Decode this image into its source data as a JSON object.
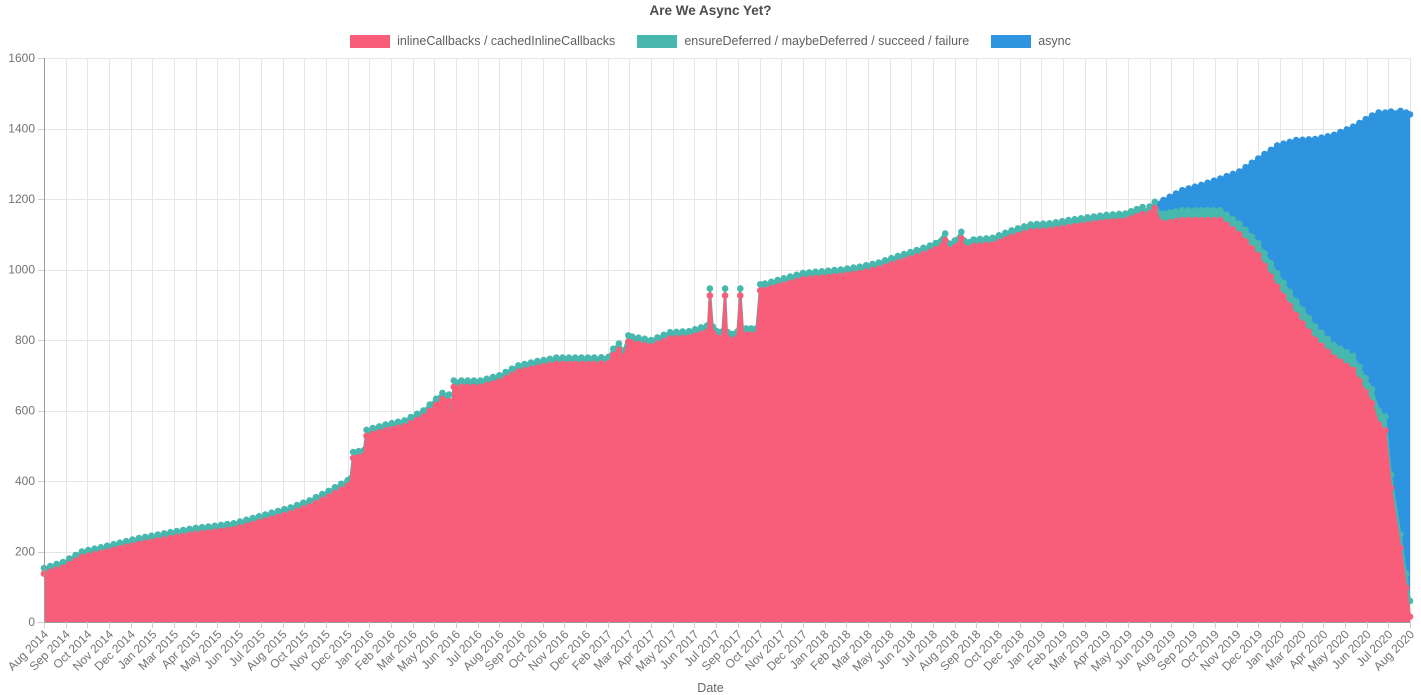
{
  "title": "Are We Async Yet?",
  "legend": [
    {
      "label": "inlineCallbacks / cachedInlineCallbacks",
      "color": "#f85e79"
    },
    {
      "label": "ensureDeferred / maybeDeferred / succeed / failure",
      "color": "#48b8ae"
    },
    {
      "label": "async",
      "color": "#2f94e0"
    }
  ],
  "chart_data": {
    "type": "area",
    "stacked": true,
    "title": "Are We Async Yet?",
    "xlabel": "Date",
    "ylabel": "",
    "ylim": [
      0,
      1600
    ],
    "y_ticks": [
      0,
      200,
      400,
      600,
      800,
      1000,
      1200,
      1400,
      1600
    ],
    "grid": true,
    "legend_position": "top",
    "x_range": {
      "start": "Aug 2014",
      "end": "Aug 2020",
      "step": "1 month",
      "month_index_max": 72
    },
    "x_tick_labels": [
      "Aug 2014",
      "Sep 2014",
      "Oct 2014",
      "Nov 2014",
      "Dec 2014",
      "Jan 2015",
      "Mar 2015",
      "Apr 2015",
      "May 2015",
      "Jun 2015",
      "Jul 2015",
      "Aug 2015",
      "Oct 2015",
      "Nov 2015",
      "Dec 2015",
      "Jan 2016",
      "Feb 2016",
      "Mar 2016",
      "May 2016",
      "Jun 2016",
      "Jul 2016",
      "Aug 2016",
      "Sep 2016",
      "Oct 2016",
      "Nov 2016",
      "Dec 2016",
      "Feb 2017",
      "Mar 2017",
      "Apr 2017",
      "May 2017",
      "Jun 2017",
      "Jul 2017",
      "Sep 2017",
      "Oct 2017",
      "Nov 2017",
      "Dec 2017",
      "Jan 2018",
      "Feb 2018",
      "Mar 2018",
      "May 2018",
      "Jun 2018",
      "Jul 2018",
      "Aug 2018",
      "Sep 2018",
      "Oct 2018",
      "Dec 2018",
      "Jan 2019",
      "Feb 2019",
      "Mar 2019",
      "Apr 2019",
      "May 2019",
      "Jun 2019",
      "Aug 2019",
      "Sep 2019",
      "Oct 2019",
      "Nov 2019",
      "Dec 2019",
      "Jan 2020",
      "Mar 2020",
      "Apr 2020",
      "May 2020",
      "Jun 2020",
      "Jul 2020",
      "Aug 2020"
    ],
    "series": [
      {
        "name": "inlineCallbacks / cachedInlineCallbacks",
        "color": "#f85e79",
        "values": [
          137,
          154,
          184,
          196,
          209,
          221,
          231,
          241,
          250,
          256,
          263,
          278,
          293,
          308,
          328,
          355,
          385,
          528,
          543,
          555,
          582,
          632,
          667,
          667,
          682,
          710,
          722,
          732,
          732,
          732,
          757,
          792,
          782,
          804,
          807,
          823,
          804,
          815,
          942,
          957,
          972,
          977,
          982,
          990,
          1002,
          1020,
          1037,
          1057,
          1063,
          1066,
          1071,
          1092,
          1108,
          1111,
          1120,
          1128,
          1135,
          1139,
          1145,
          1131,
          1140,
          1140,
          1140,
          1100,
          1040,
          950,
          870,
          800,
          750,
          715,
          620,
          380,
          15
        ]
      },
      {
        "name": "ensureDeferred / maybeDeferred / succeed / failure",
        "color": "#48b8ae",
        "values": [
          16,
          16,
          16,
          16,
          16,
          17,
          17,
          17,
          17,
          17,
          17,
          17,
          17,
          17,
          17,
          17,
          17,
          17,
          17,
          17,
          18,
          18,
          18,
          18,
          18,
          18,
          18,
          18,
          18,
          18,
          18,
          18,
          18,
          18,
          18,
          18,
          18,
          18,
          18,
          18,
          18,
          18,
          18,
          18,
          18,
          18,
          18,
          18,
          19,
          19,
          19,
          19,
          20,
          20,
          20,
          20,
          20,
          20,
          20,
          28,
          28,
          28,
          28,
          30,
          35,
          39,
          40,
          38,
          35,
          40,
          40,
          38,
          45
        ]
      },
      {
        "name": "async",
        "color": "#2f94e0",
        "values": [
          0,
          0,
          0,
          0,
          0,
          0,
          0,
          0,
          0,
          0,
          0,
          0,
          0,
          0,
          0,
          0,
          0,
          0,
          0,
          0,
          0,
          0,
          0,
          0,
          0,
          0,
          0,
          0,
          0,
          0,
          0,
          0,
          0,
          0,
          0,
          0,
          0,
          0,
          0,
          0,
          0,
          0,
          0,
          0,
          0,
          0,
          0,
          0,
          0,
          0,
          0,
          0,
          0,
          0,
          0,
          0,
          0,
          0,
          0,
          38,
          57,
          72,
          90,
          148,
          240,
          363,
          457,
          532,
          597,
          650,
          777,
          1030,
          1380
        ]
      }
    ],
    "detail_points": [
      {
        "x": 16.15,
        "v": [
          390,
          17,
          0
        ]
      },
      {
        "x": 16.3,
        "v": [
          465,
          17,
          0
        ]
      },
      {
        "x": 16.85,
        "v": [
          470,
          17,
          0
        ]
      },
      {
        "x": 21.35,
        "v": [
          627,
          18,
          0
        ]
      },
      {
        "x": 21.45,
        "v": [
          562,
          17,
          0
        ]
      },
      {
        "x": 21.6,
        "v": [
          667,
          18,
          0
        ]
      },
      {
        "x": 29.75,
        "v": [
          734,
          18,
          0
        ]
      },
      {
        "x": 30.3,
        "v": [
          772,
          18,
          0
        ]
      },
      {
        "x": 30.55,
        "v": [
          752,
          18,
          0
        ]
      },
      {
        "x": 30.8,
        "v": [
          795,
          18,
          0
        ]
      },
      {
        "x": 34.95,
        "v": [
          823,
          18,
          0
        ]
      },
      {
        "x": 35.1,
        "v": [
          926,
          20,
          0
        ]
      },
      {
        "x": 35.25,
        "v": [
          820,
          18,
          0
        ]
      },
      {
        "x": 35.75,
        "v": [
          806,
          18,
          0
        ]
      },
      {
        "x": 35.9,
        "v": [
          926,
          20,
          0
        ]
      },
      {
        "x": 36.05,
        "v": [
          804,
          18,
          0
        ]
      },
      {
        "x": 36.55,
        "v": [
          806,
          18,
          0
        ]
      },
      {
        "x": 36.7,
        "v": [
          926,
          20,
          0
        ]
      },
      {
        "x": 36.85,
        "v": [
          806,
          18,
          0
        ]
      },
      {
        "x": 37.55,
        "v": [
          815,
          18,
          0
        ]
      },
      {
        "x": 37.75,
        "v": [
          940,
          18,
          0
        ]
      },
      {
        "x": 46.7,
        "v": [
          1050,
          18,
          0
        ]
      },
      {
        "x": 47.5,
        "v": [
          1083,
          19,
          0
        ]
      },
      {
        "x": 47.65,
        "v": [
          1057,
          18,
          0
        ]
      },
      {
        "x": 48.35,
        "v": [
          1088,
          19,
          0
        ]
      },
      {
        "x": 48.5,
        "v": [
          1063,
          19,
          0
        ]
      },
      {
        "x": 57.9,
        "v": [
          1157,
          20,
          0
        ]
      },
      {
        "x": 58.55,
        "v": [
          1174,
          18,
          0
        ]
      },
      {
        "x": 58.85,
        "v": [
          1133,
          24,
          30
        ]
      },
      {
        "x": 70.35,
        "v": [
          560,
          40,
          845
        ]
      },
      {
        "x": 70.7,
        "v": [
          543,
          40,
          862
        ]
      },
      {
        "x": 71.5,
        "v": [
          210,
          38,
          1202
        ]
      },
      {
        "x": 71.8,
        "v": [
          97,
          40,
          1308
        ]
      }
    ]
  }
}
